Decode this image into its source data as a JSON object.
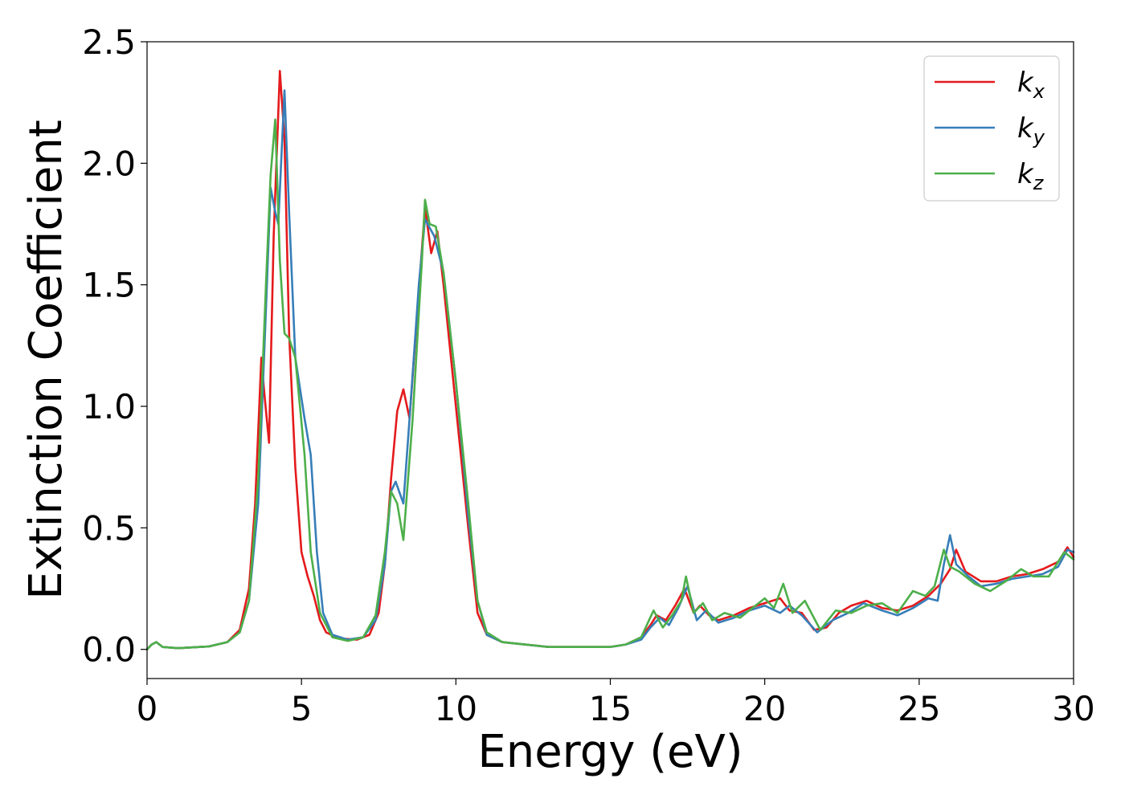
{
  "chart_data": {
    "type": "line",
    "title": "",
    "xlabel": "Energy (eV)",
    "ylabel": "Extinction Coefficient",
    "xlim": [
      0,
      30
    ],
    "ylim": [
      -0.12,
      2.5
    ],
    "xticks": [
      0,
      5,
      10,
      15,
      20,
      25,
      30
    ],
    "yticks": [
      "0.0",
      "0.5",
      "1.0",
      "1.5",
      "2.0",
      "2.5"
    ],
    "legend_position": "top-right",
    "grid": false,
    "series": [
      {
        "name": "k",
        "subscript": "x",
        "color": "#e41a1c",
        "points": [
          [
            0,
            0.0
          ],
          [
            0.15,
            0.02
          ],
          [
            0.3,
            0.03
          ],
          [
            0.5,
            0.01
          ],
          [
            1,
            0.005
          ],
          [
            2,
            0.012
          ],
          [
            2.6,
            0.03
          ],
          [
            3.0,
            0.08
          ],
          [
            3.3,
            0.25
          ],
          [
            3.5,
            0.6
          ],
          [
            3.7,
            1.2
          ],
          [
            3.8,
            1.05
          ],
          [
            3.95,
            0.85
          ],
          [
            4.1,
            1.7
          ],
          [
            4.3,
            2.38
          ],
          [
            4.45,
            2.1
          ],
          [
            4.6,
            1.3
          ],
          [
            4.8,
            0.75
          ],
          [
            5.0,
            0.4
          ],
          [
            5.2,
            0.3
          ],
          [
            5.4,
            0.22
          ],
          [
            5.6,
            0.12
          ],
          [
            5.8,
            0.07
          ],
          [
            6.2,
            0.045
          ],
          [
            6.8,
            0.04
          ],
          [
            7.2,
            0.06
          ],
          [
            7.5,
            0.15
          ],
          [
            7.7,
            0.35
          ],
          [
            7.9,
            0.7
          ],
          [
            8.1,
            0.98
          ],
          [
            8.3,
            1.07
          ],
          [
            8.5,
            0.95
          ],
          [
            8.7,
            1.3
          ],
          [
            9.0,
            1.82
          ],
          [
            9.2,
            1.63
          ],
          [
            9.4,
            1.72
          ],
          [
            9.6,
            1.5
          ],
          [
            10.0,
            1.0
          ],
          [
            10.4,
            0.5
          ],
          [
            10.7,
            0.15
          ],
          [
            11.0,
            0.06
          ],
          [
            11.5,
            0.03
          ],
          [
            13,
            0.01
          ],
          [
            15,
            0.01
          ],
          [
            15.5,
            0.02
          ],
          [
            16.0,
            0.05
          ],
          [
            16.3,
            0.1
          ],
          [
            16.5,
            0.14
          ],
          [
            16.8,
            0.12
          ],
          [
            17.1,
            0.18
          ],
          [
            17.4,
            0.25
          ],
          [
            17.7,
            0.15
          ],
          [
            17.9,
            0.18
          ],
          [
            18.2,
            0.14
          ],
          [
            18.5,
            0.12
          ],
          [
            19.0,
            0.14
          ],
          [
            19.5,
            0.17
          ],
          [
            20.0,
            0.19
          ],
          [
            20.5,
            0.21
          ],
          [
            20.8,
            0.16
          ],
          [
            21.2,
            0.15
          ],
          [
            21.6,
            0.08
          ],
          [
            22.0,
            0.09
          ],
          [
            22.4,
            0.15
          ],
          [
            22.8,
            0.18
          ],
          [
            23.3,
            0.2
          ],
          [
            23.8,
            0.17
          ],
          [
            24.3,
            0.16
          ],
          [
            24.8,
            0.18
          ],
          [
            25.3,
            0.22
          ],
          [
            25.7,
            0.27
          ],
          [
            26.0,
            0.33
          ],
          [
            26.2,
            0.41
          ],
          [
            26.5,
            0.32
          ],
          [
            27.0,
            0.28
          ],
          [
            27.5,
            0.28
          ],
          [
            28.0,
            0.3
          ],
          [
            28.5,
            0.31
          ],
          [
            29.0,
            0.33
          ],
          [
            29.5,
            0.36
          ],
          [
            29.8,
            0.42
          ],
          [
            30.0,
            0.38
          ]
        ]
      },
      {
        "name": "k",
        "subscript": "y",
        "color": "#377eb8",
        "points": [
          [
            0,
            0.0
          ],
          [
            0.15,
            0.02
          ],
          [
            0.3,
            0.03
          ],
          [
            0.5,
            0.01
          ],
          [
            1,
            0.005
          ],
          [
            2,
            0.012
          ],
          [
            2.6,
            0.03
          ],
          [
            3.0,
            0.07
          ],
          [
            3.3,
            0.2
          ],
          [
            3.6,
            0.6
          ],
          [
            3.85,
            1.4
          ],
          [
            4.0,
            1.9
          ],
          [
            4.15,
            1.8
          ],
          [
            4.25,
            1.75
          ],
          [
            4.45,
            2.3
          ],
          [
            4.6,
            1.8
          ],
          [
            4.8,
            1.2
          ],
          [
            5.1,
            0.95
          ],
          [
            5.3,
            0.8
          ],
          [
            5.5,
            0.4
          ],
          [
            5.7,
            0.15
          ],
          [
            6.0,
            0.06
          ],
          [
            6.5,
            0.04
          ],
          [
            7.0,
            0.05
          ],
          [
            7.4,
            0.12
          ],
          [
            7.7,
            0.35
          ],
          [
            7.9,
            0.65
          ],
          [
            8.05,
            0.69
          ],
          [
            8.3,
            0.6
          ],
          [
            8.5,
            0.95
          ],
          [
            8.8,
            1.5
          ],
          [
            9.0,
            1.77
          ],
          [
            9.3,
            1.7
          ],
          [
            9.6,
            1.55
          ],
          [
            10.0,
            1.1
          ],
          [
            10.4,
            0.55
          ],
          [
            10.7,
            0.2
          ],
          [
            11.0,
            0.06
          ],
          [
            11.5,
            0.03
          ],
          [
            13,
            0.01
          ],
          [
            15,
            0.01
          ],
          [
            15.5,
            0.02
          ],
          [
            16.0,
            0.04
          ],
          [
            16.3,
            0.09
          ],
          [
            16.6,
            0.13
          ],
          [
            16.9,
            0.1
          ],
          [
            17.2,
            0.17
          ],
          [
            17.5,
            0.26
          ],
          [
            17.8,
            0.12
          ],
          [
            18.1,
            0.16
          ],
          [
            18.5,
            0.11
          ],
          [
            19.0,
            0.13
          ],
          [
            19.5,
            0.16
          ],
          [
            20.0,
            0.18
          ],
          [
            20.5,
            0.15
          ],
          [
            20.8,
            0.18
          ],
          [
            21.2,
            0.14
          ],
          [
            21.7,
            0.07
          ],
          [
            22.2,
            0.12
          ],
          [
            22.7,
            0.15
          ],
          [
            23.2,
            0.19
          ],
          [
            23.8,
            0.16
          ],
          [
            24.3,
            0.14
          ],
          [
            24.8,
            0.17
          ],
          [
            25.3,
            0.21
          ],
          [
            25.6,
            0.2
          ],
          [
            25.8,
            0.35
          ],
          [
            26.0,
            0.47
          ],
          [
            26.2,
            0.35
          ],
          [
            26.6,
            0.3
          ],
          [
            27.0,
            0.26
          ],
          [
            27.5,
            0.27
          ],
          [
            28.0,
            0.29
          ],
          [
            28.5,
            0.3
          ],
          [
            29.0,
            0.31
          ],
          [
            29.5,
            0.34
          ],
          [
            29.8,
            0.41
          ],
          [
            30.0,
            0.4
          ]
        ]
      },
      {
        "name": "k",
        "subscript": "z",
        "color": "#4daf4a",
        "points": [
          [
            0,
            0.0
          ],
          [
            0.15,
            0.02
          ],
          [
            0.3,
            0.03
          ],
          [
            0.5,
            0.01
          ],
          [
            1,
            0.005
          ],
          [
            2,
            0.012
          ],
          [
            2.6,
            0.03
          ],
          [
            3.0,
            0.07
          ],
          [
            3.3,
            0.2
          ],
          [
            3.6,
            0.7
          ],
          [
            3.85,
            1.5
          ],
          [
            4.0,
            1.95
          ],
          [
            4.15,
            2.18
          ],
          [
            4.3,
            1.6
          ],
          [
            4.45,
            1.3
          ],
          [
            4.6,
            1.28
          ],
          [
            4.8,
            1.2
          ],
          [
            5.1,
            0.8
          ],
          [
            5.3,
            0.4
          ],
          [
            5.6,
            0.15
          ],
          [
            6.0,
            0.05
          ],
          [
            6.5,
            0.035
          ],
          [
            7.0,
            0.05
          ],
          [
            7.4,
            0.14
          ],
          [
            7.7,
            0.4
          ],
          [
            7.9,
            0.65
          ],
          [
            8.1,
            0.6
          ],
          [
            8.3,
            0.45
          ],
          [
            8.6,
            0.95
          ],
          [
            8.9,
            1.6
          ],
          [
            9.0,
            1.85
          ],
          [
            9.15,
            1.75
          ],
          [
            9.35,
            1.74
          ],
          [
            9.6,
            1.55
          ],
          [
            10.0,
            1.1
          ],
          [
            10.4,
            0.6
          ],
          [
            10.7,
            0.2
          ],
          [
            11.0,
            0.07
          ],
          [
            11.5,
            0.03
          ],
          [
            13,
            0.01
          ],
          [
            15,
            0.01
          ],
          [
            15.5,
            0.02
          ],
          [
            16.0,
            0.05
          ],
          [
            16.4,
            0.16
          ],
          [
            16.7,
            0.09
          ],
          [
            17.0,
            0.14
          ],
          [
            17.3,
            0.2
          ],
          [
            17.45,
            0.3
          ],
          [
            17.7,
            0.15
          ],
          [
            18.0,
            0.19
          ],
          [
            18.3,
            0.12
          ],
          [
            18.7,
            0.15
          ],
          [
            19.2,
            0.13
          ],
          [
            19.6,
            0.17
          ],
          [
            20.0,
            0.21
          ],
          [
            20.3,
            0.17
          ],
          [
            20.6,
            0.27
          ],
          [
            20.9,
            0.15
          ],
          [
            21.3,
            0.2
          ],
          [
            21.8,
            0.08
          ],
          [
            22.3,
            0.16
          ],
          [
            22.8,
            0.15
          ],
          [
            23.3,
            0.18
          ],
          [
            23.8,
            0.19
          ],
          [
            24.3,
            0.15
          ],
          [
            24.8,
            0.24
          ],
          [
            25.2,
            0.22
          ],
          [
            25.5,
            0.26
          ],
          [
            25.8,
            0.41
          ],
          [
            26.0,
            0.34
          ],
          [
            26.3,
            0.32
          ],
          [
            26.8,
            0.27
          ],
          [
            27.3,
            0.24
          ],
          [
            27.8,
            0.28
          ],
          [
            28.3,
            0.33
          ],
          [
            28.7,
            0.3
          ],
          [
            29.2,
            0.3
          ],
          [
            29.7,
            0.4
          ],
          [
            30.0,
            0.37
          ]
        ]
      }
    ]
  }
}
